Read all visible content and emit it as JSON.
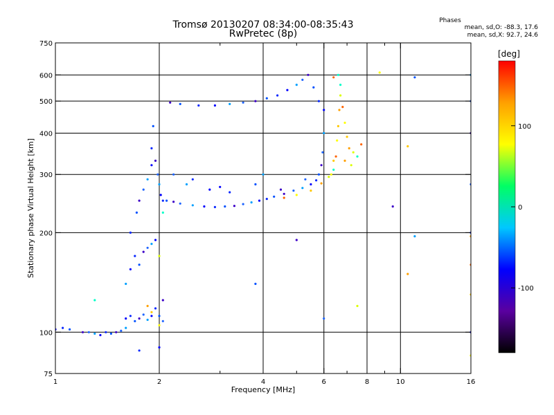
{
  "chart_data": {
    "type": "scatter",
    "title": "Tromsø 20130207 08:34:00-08:35:43",
    "subtitle": "RwPretec (8p)",
    "xlabel": "Frequency [MHz]",
    "ylabel": "Stationary phase Virtual Height [km]",
    "x_scale": "log",
    "y_scale": "log",
    "xlim": [
      1,
      16
    ],
    "ylim": [
      75,
      750
    ],
    "x_ticks": [
      1,
      2,
      4,
      6,
      8,
      10,
      16
    ],
    "x_tick_labels": [
      "1",
      "2",
      "4",
      "6",
      "8",
      "10",
      "16"
    ],
    "x_minor_ticks": [
      3,
      5,
      7,
      9
    ],
    "y_ticks": [
      75,
      100,
      200,
      300,
      400,
      500,
      600,
      750
    ],
    "y_tick_labels": [
      "75",
      "100",
      "200",
      "300",
      "400",
      "500",
      "600",
      "750"
    ],
    "grid_x": [
      2,
      4,
      6,
      8,
      10
    ],
    "grid_y": [
      100,
      200,
      300,
      400,
      500,
      600
    ],
    "grid": true,
    "stats": {
      "heading": "Phases",
      "line_o": "mean, sd,O: -88.3, 17.6",
      "line_x": "mean, sd,X: 92.7, 24.6"
    },
    "colorbar": {
      "label": "[deg]",
      "range": [
        -180,
        180
      ],
      "ticks": [
        -100,
        0,
        100
      ],
      "tick_labels": [
        "-100",
        "0",
        "100"
      ],
      "colormap": "rainbow",
      "stops": [
        "#000000",
        "#5a00a0",
        "#0000ff",
        "#00c8ff",
        "#00ff64",
        "#ffff00",
        "#ffa000",
        "#ff0000"
      ]
    },
    "series": [
      {
        "points": [
          [
            1.0,
            102
          ],
          [
            1.05,
            103
          ],
          [
            1.1,
            102
          ],
          [
            1.2,
            100
          ],
          [
            1.25,
            100
          ],
          [
            1.3,
            99
          ],
          [
            1.35,
            98
          ],
          [
            1.4,
            100
          ],
          [
            1.45,
            99
          ],
          [
            1.5,
            100
          ],
          [
            1.55,
            101
          ],
          [
            1.6,
            103
          ],
          [
            1.6,
            110
          ],
          [
            1.65,
            112
          ],
          [
            1.7,
            108
          ],
          [
            1.75,
            110
          ],
          [
            1.8,
            113
          ],
          [
            1.85,
            109
          ],
          [
            1.9,
            112
          ],
          [
            1.95,
            118
          ],
          [
            2.0,
            112
          ],
          [
            2.05,
            125
          ],
          [
            2.05,
            108
          ],
          [
            1.6,
            140
          ],
          [
            1.65,
            155
          ],
          [
            1.7,
            170
          ],
          [
            1.75,
            160
          ],
          [
            1.8,
            175
          ],
          [
            1.85,
            180
          ],
          [
            1.9,
            185
          ],
          [
            1.95,
            190
          ],
          [
            1.65,
            200
          ],
          [
            1.72,
            230
          ],
          [
            1.75,
            250
          ],
          [
            1.8,
            270
          ],
          [
            1.85,
            290
          ],
          [
            1.9,
            320
          ],
          [
            1.9,
            360
          ],
          [
            1.92,
            420
          ],
          [
            1.95,
            330
          ],
          [
            1.98,
            300
          ],
          [
            2.0,
            280
          ],
          [
            2.02,
            260
          ],
          [
            2.05,
            250
          ],
          [
            2.1,
            250
          ],
          [
            2.2,
            248
          ],
          [
            2.3,
            245
          ],
          [
            2.5,
            242
          ],
          [
            2.7,
            240
          ],
          [
            2.9,
            239
          ],
          [
            3.1,
            240
          ],
          [
            3.3,
            241
          ],
          [
            3.5,
            244
          ],
          [
            3.7,
            247
          ],
          [
            3.9,
            250
          ],
          [
            4.1,
            253
          ],
          [
            4.3,
            257
          ],
          [
            4.6,
            262
          ],
          [
            4.9,
            268
          ],
          [
            5.2,
            273
          ],
          [
            5.5,
            280
          ],
          [
            5.7,
            288
          ],
          [
            5.8,
            300
          ],
          [
            5.9,
            320
          ],
          [
            5.95,
            350
          ],
          [
            6.0,
            400
          ],
          [
            6.0,
            470
          ],
          [
            5.8,
            500
          ],
          [
            5.6,
            550
          ],
          [
            5.4,
            600
          ],
          [
            5.2,
            580
          ],
          [
            5.0,
            560
          ],
          [
            4.7,
            540
          ],
          [
            4.4,
            520
          ],
          [
            4.1,
            510
          ],
          [
            3.8,
            500
          ],
          [
            3.5,
            495
          ],
          [
            3.2,
            490
          ],
          [
            2.9,
            485
          ],
          [
            2.6,
            485
          ],
          [
            2.3,
            490
          ],
          [
            2.15,
            495
          ],
          [
            2.2,
            300
          ],
          [
            2.4,
            280
          ],
          [
            2.8,
            270
          ],
          [
            3.2,
            265
          ],
          [
            3.8,
            280
          ],
          [
            4.5,
            270
          ],
          [
            5.3,
            290
          ],
          [
            4.0,
            300
          ],
          [
            3.0,
            275
          ],
          [
            2.5,
            290
          ],
          [
            3.8,
            140
          ],
          [
            5.0,
            190
          ],
          [
            6.0,
            110
          ],
          [
            11,
            195
          ],
          [
            16,
            100
          ],
          [
            16,
            200
          ],
          [
            16,
            280
          ],
          [
            16,
            400
          ],
          [
            16,
            500
          ],
          [
            16,
            600
          ],
          [
            2.0,
            90
          ],
          [
            1.75,
            88
          ],
          [
            11,
            590
          ],
          [
            9.5,
            240
          ]
        ]
      },
      {
        "points": [
          [
            2.0,
            105
          ],
          [
            1.9,
            115
          ],
          [
            1.85,
            120
          ],
          [
            2.0,
            170
          ],
          [
            2.05,
            230
          ],
          [
            4.6,
            255
          ],
          [
            5.0,
            260
          ],
          [
            5.5,
            268
          ],
          [
            5.9,
            282
          ],
          [
            6.2,
            295
          ],
          [
            6.4,
            310
          ],
          [
            6.5,
            340
          ],
          [
            6.55,
            380
          ],
          [
            6.6,
            420
          ],
          [
            6.65,
            470
          ],
          [
            6.7,
            520
          ],
          [
            6.7,
            560
          ],
          [
            6.8,
            480
          ],
          [
            6.9,
            430
          ],
          [
            7.0,
            390
          ],
          [
            7.1,
            360
          ],
          [
            7.3,
            350
          ],
          [
            7.5,
            340
          ],
          [
            7.7,
            370
          ],
          [
            6.3,
            300
          ],
          [
            6.4,
            330
          ],
          [
            6.9,
            330
          ],
          [
            7.2,
            320
          ],
          [
            6.6,
            600
          ],
          [
            6.4,
            590
          ],
          [
            8.7,
            610
          ],
          [
            10.5,
            365
          ],
          [
            10.5,
            150
          ],
          [
            7.5,
            120
          ],
          [
            1.3,
            125
          ],
          [
            16,
            160
          ],
          [
            16,
            85
          ],
          [
            16,
            130
          ],
          [
            16,
            195
          ]
        ]
      }
    ]
  }
}
